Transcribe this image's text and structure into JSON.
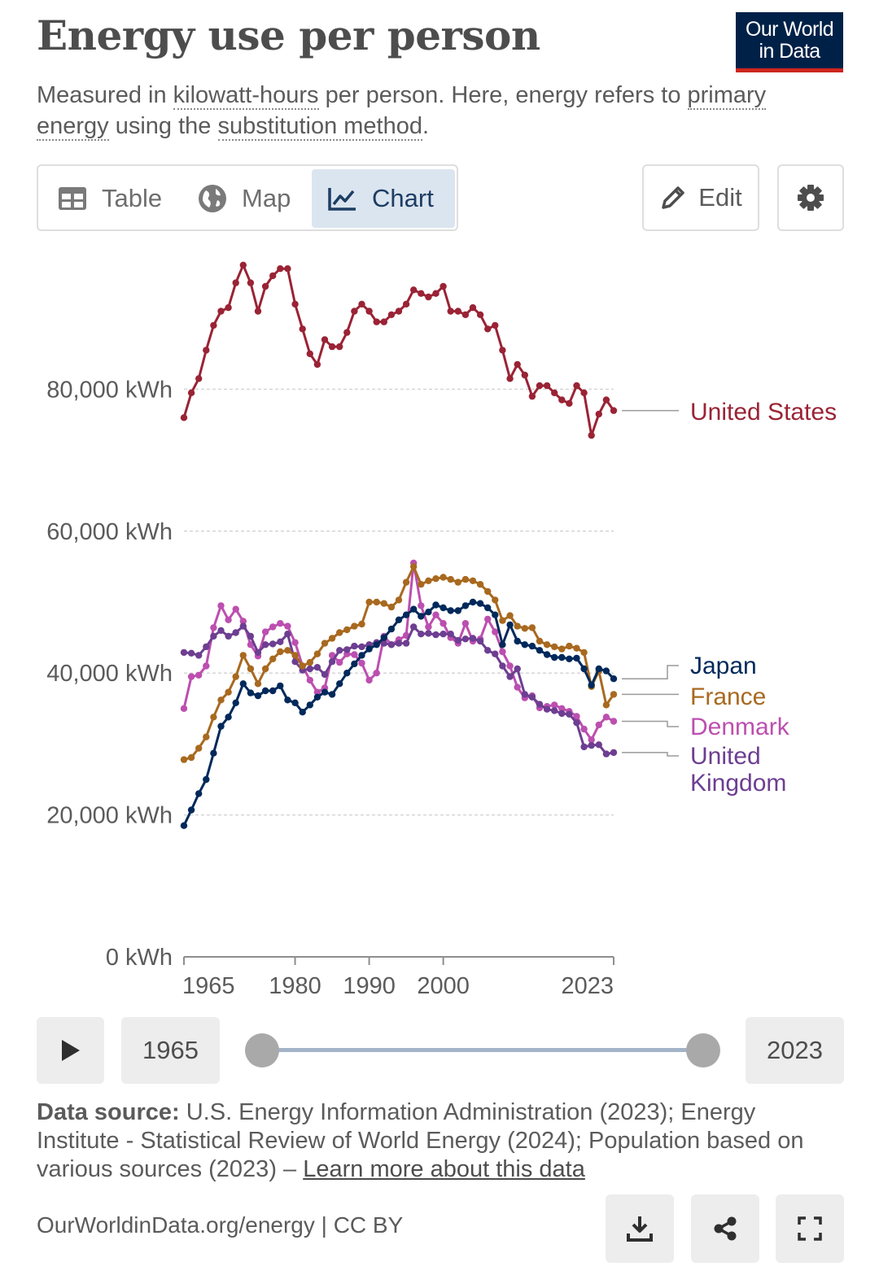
{
  "header": {
    "title": "Energy use per person",
    "logo_line1": "Our World",
    "logo_line2": "in Data",
    "subtitle_parts": [
      "Measured in ",
      "kilowatt-hours",
      " per person. Here, energy refers to ",
      "primary energy",
      " using the ",
      "substitution method",
      "."
    ]
  },
  "tabs": [
    {
      "label": "Table",
      "icon": "table-icon",
      "active": false
    },
    {
      "label": "Map",
      "icon": "globe-icon",
      "active": false
    },
    {
      "label": "Chart",
      "icon": "line-chart-icon",
      "active": true
    }
  ],
  "controls": {
    "edit_label": "Edit",
    "settings_icon": "gear-icon"
  },
  "timeline": {
    "start_label": "1965",
    "end_label": "2023",
    "start_year": 1965,
    "end_year": 2023,
    "play_icon": "play-icon"
  },
  "source": {
    "label": "Data source:",
    "text": " U.S. Energy Information Administration (2023); Energy Institute - Statistical Review of World Energy (2024); Population based on various sources (2023) – ",
    "link": "Learn more about this data"
  },
  "footer": {
    "url_text": "OurWorldinData.org/energy | CC BY",
    "icons": [
      "download-icon",
      "share-icon",
      "fullscreen-icon"
    ]
  },
  "chart_data": {
    "type": "line",
    "title": "Energy use per person",
    "ylim": [
      0,
      100000
    ],
    "yticks": [
      0,
      20000,
      40000,
      60000,
      80000
    ],
    "ytick_labels": [
      "0 kWh",
      "20,000 kWh",
      "40,000 kWh",
      "60,000 kWh",
      "80,000 kWh"
    ],
    "xticks": [
      1965,
      1980,
      1990,
      2000,
      2023
    ],
    "x_start": 1965,
    "x_end": 2023,
    "grid": true,
    "legend": "right",
    "series": [
      {
        "name": "United States",
        "color": "#9a2335",
        "values": [
          76000,
          79500,
          81500,
          85500,
          89000,
          91000,
          91500,
          95000,
          97500,
          95000,
          91000,
          94500,
          96000,
          97000,
          97000,
          92000,
          88500,
          85000,
          83500,
          87000,
          86000,
          86000,
          88000,
          91000,
          92000,
          91000,
          89500,
          89500,
          90500,
          91000,
          92000,
          94000,
          93500,
          93000,
          93500,
          94500,
          91000,
          91000,
          90500,
          91500,
          90500,
          88500,
          89000,
          85500,
          81500,
          83500,
          82000,
          79000,
          80500,
          80500,
          79500,
          78500,
          78000,
          80500,
          79500,
          73500,
          76500,
          78500,
          77000
        ]
      },
      {
        "name": "Japan",
        "color": "#00295b",
        "values": [
          18500,
          20700,
          23000,
          25000,
          28700,
          32500,
          33800,
          35800,
          38500,
          37200,
          36800,
          37500,
          37500,
          38200,
          36200,
          35800,
          34500,
          35500,
          36600,
          37300,
          37000,
          38500,
          40000,
          41300,
          42500,
          43400,
          44000,
          45000,
          46200,
          47500,
          48200,
          49000,
          48000,
          48600,
          49600,
          49200,
          48800,
          48800,
          49500,
          50000,
          49800,
          49200,
          48200,
          44000,
          46800,
          44500,
          44000,
          43800,
          43200,
          42600,
          42200,
          42200,
          42000,
          42100,
          40600,
          38300,
          40600,
          40300,
          39200
        ]
      },
      {
        "name": "France",
        "color": "#a8691f",
        "values": [
          27800,
          28100,
          29400,
          31000,
          33800,
          36200,
          37300,
          39500,
          42500,
          40600,
          38500,
          40600,
          42000,
          43000,
          43200,
          42500,
          41000,
          41500,
          42700,
          44200,
          44900,
          45700,
          46100,
          46600,
          46900,
          50000,
          50000,
          49800,
          49300,
          50300,
          52800,
          55000,
          52500,
          53000,
          53300,
          53500,
          53200,
          52800,
          53200,
          53000,
          52500,
          51500,
          50300,
          47400,
          48100,
          46600,
          46300,
          46400,
          44500,
          44000,
          43700,
          43400,
          43800,
          43500,
          42900,
          38100,
          40300,
          35500,
          37000
        ]
      },
      {
        "name": "Denmark",
        "color": "#bc4fb0",
        "values": [
          35000,
          39500,
          39700,
          41000,
          46400,
          49500,
          47500,
          49000,
          47300,
          44000,
          42400,
          45800,
          46500,
          47000,
          46600,
          44300,
          41000,
          39000,
          37300,
          37900,
          42500,
          41500,
          42700,
          42600,
          41400,
          39000,
          40000,
          45200,
          44000,
          44700,
          45300,
          55500,
          49500,
          46500,
          48200,
          47000,
          45000,
          44200,
          47000,
          44500,
          44800,
          47600,
          45800,
          43000,
          41000,
          38000,
          36500,
          36800,
          35100,
          35300,
          35500,
          35000,
          34600,
          33900,
          32100,
          30600,
          32700,
          33800,
          33200
        ]
      },
      {
        "name": "United Kingdom",
        "color": "#6d3e91",
        "values": [
          42900,
          42800,
          42500,
          43700,
          45200,
          46000,
          45200,
          45700,
          46600,
          45200,
          42900,
          44000,
          44100,
          44400,
          45500,
          41600,
          40400,
          40600,
          40800,
          39800,
          41600,
          43200,
          43300,
          43800,
          43700,
          44000,
          44300,
          44200,
          44000,
          44200,
          44200,
          46500,
          45500,
          45600,
          45400,
          45500,
          45500,
          44600,
          44800,
          44900,
          44500,
          43200,
          42700,
          41000,
          39500,
          40600,
          37000,
          36600,
          35600,
          34900,
          34700,
          34300,
          34200,
          33000,
          29600,
          29800,
          29900,
          28600,
          28800
        ]
      }
    ],
    "legend_entries": [
      {
        "lines": [
          "United States"
        ],
        "color": "#9a2335"
      },
      {
        "lines": [
          "Japan"
        ],
        "color": "#00295b"
      },
      {
        "lines": [
          "France"
        ],
        "color": "#a8691f"
      },
      {
        "lines": [
          "Denmark"
        ],
        "color": "#bc4fb0"
      },
      {
        "lines": [
          "United",
          "Kingdom"
        ],
        "color": "#6d3e91"
      }
    ]
  }
}
